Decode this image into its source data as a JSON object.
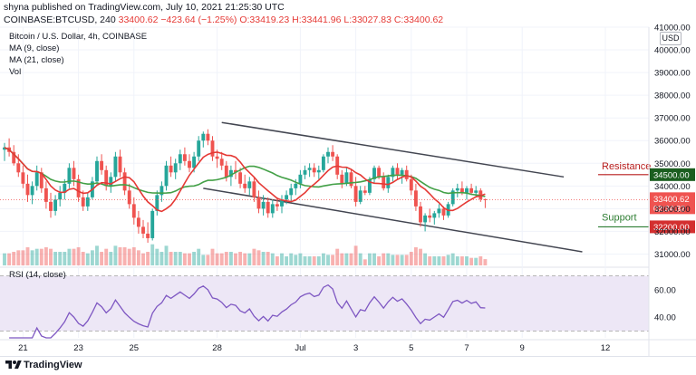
{
  "header": {
    "publisher_line": "shyna published on TradingView.com, July 10, 2021 21:25:30 UTC",
    "symbol": "COINBASE:BTCUSD, 240",
    "price": "33400.62",
    "change": "−423.64 (−1.25%)",
    "open": "O:33419.23",
    "high": "H:33441.96",
    "low": "L:33027.83",
    "close": "C:33400.62"
  },
  "legend": {
    "title": "Bitcoin / U.S. Dollar, 4h, COINBASE",
    "ma9": "MA (9, close)",
    "ma21": "MA (21, close)",
    "vol": "Vol"
  },
  "axis": {
    "currency": "USD"
  },
  "rsi_legend": "RSI (14, close)",
  "footer": {
    "brand": "TradingView"
  },
  "colors": {
    "up": "#26a69a",
    "down": "#ef5350",
    "ma9": "#e53935",
    "ma21": "#43a047",
    "channel": "#434651",
    "rsi": "#7e57c2",
    "rsi_band": "#ede7f6",
    "resistance": "#b71c1c",
    "support": "#2e7d32",
    "price_tag": "#ef5350"
  },
  "annotations": {
    "resistance_label": "Resistance",
    "resistance_price": "34500.00",
    "support_label": "Support",
    "support_price": "32200.00",
    "current_price": "33400.62",
    "countdown": "02:34:32"
  },
  "chart_data": [
    {
      "type": "candlestick",
      "title": "Bitcoin / U.S. Dollar, 4h, COINBASE",
      "ylim": [
        30500,
        41000
      ],
      "y_ticks": [
        31000,
        32000,
        33000,
        34000,
        35000,
        36000,
        37000,
        38000,
        39000,
        40000,
        41000
      ],
      "x_ticks": [
        {
          "label": "21",
          "bar": 4
        },
        {
          "label": "23",
          "bar": 16
        },
        {
          "label": "25",
          "bar": 28
        },
        {
          "label": "28",
          "bar": 46
        },
        {
          "label": "Jul",
          "bar": 64
        },
        {
          "label": "3",
          "bar": 76
        },
        {
          "label": "5",
          "bar": 88
        },
        {
          "label": "7",
          "bar": 100
        },
        {
          "label": "9",
          "bar": 112
        },
        {
          "label": "12",
          "bar": 130
        }
      ],
      "candles": [
        [
          35600,
          35900,
          35100,
          35700
        ],
        [
          35700,
          36100,
          35300,
          35500
        ],
        [
          35500,
          35800,
          34900,
          35000
        ],
        [
          35000,
          35400,
          34400,
          34600
        ],
        [
          34600,
          34900,
          33900,
          34100
        ],
        [
          34100,
          34500,
          33300,
          33600
        ],
        [
          33600,
          34200,
          33200,
          34000
        ],
        [
          34000,
          34900,
          33800,
          34600
        ],
        [
          34600,
          34800,
          33700,
          33900
        ],
        [
          33900,
          34200,
          33000,
          33300
        ],
        [
          33300,
          33700,
          32600,
          32900
        ],
        [
          32900,
          33600,
          32700,
          33400
        ],
        [
          33400,
          34000,
          33100,
          33700
        ],
        [
          33700,
          34300,
          33400,
          34100
        ],
        [
          34100,
          35000,
          33900,
          34800
        ],
        [
          34800,
          35100,
          34000,
          34300
        ],
        [
          34300,
          34500,
          33300,
          33500
        ],
        [
          33500,
          33800,
          32900,
          33100
        ],
        [
          33100,
          33700,
          32900,
          33500
        ],
        [
          33500,
          34400,
          33400,
          34200
        ],
        [
          34200,
          35300,
          34000,
          35100
        ],
        [
          35100,
          35400,
          34500,
          34700
        ],
        [
          34700,
          34900,
          33800,
          34000
        ],
        [
          34000,
          34600,
          33700,
          34400
        ],
        [
          34400,
          35500,
          34200,
          35300
        ],
        [
          35300,
          35600,
          34400,
          34600
        ],
        [
          34600,
          34800,
          33600,
          33800
        ],
        [
          33800,
          34100,
          33000,
          33200
        ],
        [
          33200,
          33500,
          32300,
          32600
        ],
        [
          32600,
          32900,
          31900,
          32200
        ],
        [
          32200,
          32500,
          31700,
          31900
        ],
        [
          31900,
          32400,
          31500,
          31700
        ],
        [
          31700,
          33000,
          31600,
          32900
        ],
        [
          32900,
          33800,
          32700,
          33600
        ],
        [
          33600,
          34200,
          33300,
          34000
        ],
        [
          34000,
          35100,
          33800,
          34900
        ],
        [
          34900,
          35300,
          34400,
          34600
        ],
        [
          34600,
          35200,
          34300,
          35000
        ],
        [
          35000,
          35600,
          34700,
          35400
        ],
        [
          35400,
          35700,
          34900,
          35100
        ],
        [
          35100,
          35400,
          34600,
          34800
        ],
        [
          34800,
          35500,
          34600,
          35300
        ],
        [
          35300,
          36200,
          35100,
          36000
        ],
        [
          36000,
          36400,
          35700,
          36300
        ],
        [
          36300,
          36500,
          35800,
          36000
        ],
        [
          36000,
          36200,
          35100,
          35300
        ],
        [
          35300,
          35600,
          34800,
          35200
        ],
        [
          35200,
          35500,
          34700,
          34900
        ],
        [
          34900,
          35100,
          34200,
          34400
        ],
        [
          34400,
          34900,
          34000,
          34700
        ],
        [
          34700,
          35100,
          34300,
          34600
        ],
        [
          34600,
          34800,
          33900,
          34100
        ],
        [
          34100,
          34500,
          33700,
          33900
        ],
        [
          33900,
          34400,
          33600,
          34200
        ],
        [
          34200,
          34400,
          33300,
          33500
        ],
        [
          33500,
          33800,
          32800,
          33000
        ],
        [
          33000,
          33600,
          32700,
          33300
        ],
        [
          33300,
          33500,
          32600,
          32800
        ],
        [
          32800,
          33400,
          32600,
          33200
        ],
        [
          33200,
          33500,
          32900,
          33100
        ],
        [
          33100,
          33600,
          32800,
          33400
        ],
        [
          33400,
          33800,
          33200,
          33600
        ],
        [
          33600,
          34100,
          33300,
          33900
        ],
        [
          33900,
          34300,
          33600,
          34100
        ],
        [
          34100,
          34700,
          33900,
          34500
        ],
        [
          34500,
          34900,
          34300,
          34700
        ],
        [
          34700,
          35000,
          34400,
          34800
        ],
        [
          34800,
          35000,
          34400,
          34600
        ],
        [
          34600,
          34900,
          34300,
          34700
        ],
        [
          34700,
          35400,
          34600,
          35300
        ],
        [
          35300,
          35700,
          35000,
          35500
        ],
        [
          35500,
          35800,
          35100,
          35300
        ],
        [
          35300,
          35400,
          34300,
          34500
        ],
        [
          34500,
          34700,
          33900,
          34100
        ],
        [
          34100,
          34800,
          34000,
          34600
        ],
        [
          34600,
          34700,
          33900,
          34000
        ],
        [
          34000,
          34400,
          33100,
          33300
        ],
        [
          33300,
          34000,
          33200,
          33800
        ],
        [
          33800,
          34000,
          33600,
          33700
        ],
        [
          33700,
          34400,
          33600,
          34300
        ],
        [
          34300,
          34900,
          34100,
          34800
        ],
        [
          34800,
          34900,
          34300,
          34400
        ],
        [
          34400,
          34600,
          33800,
          33900
        ],
        [
          33900,
          34500,
          33700,
          34400
        ],
        [
          34400,
          34900,
          34200,
          34800
        ],
        [
          34800,
          35000,
          34300,
          34500
        ],
        [
          34500,
          34800,
          34100,
          34700
        ],
        [
          34700,
          34900,
          34200,
          34300
        ],
        [
          34300,
          34500,
          33600,
          33800
        ],
        [
          33800,
          34100,
          32900,
          33100
        ],
        [
          33100,
          33300,
          32200,
          32400
        ],
        [
          32400,
          32800,
          32000,
          32700
        ],
        [
          32700,
          33000,
          32400,
          32600
        ],
        [
          32600,
          32900,
          32300,
          32800
        ],
        [
          32800,
          33200,
          32600,
          33000
        ],
        [
          33000,
          33100,
          32500,
          32700
        ],
        [
          32700,
          33300,
          32600,
          33200
        ],
        [
          33200,
          33900,
          33100,
          33800
        ],
        [
          33800,
          34100,
          33500,
          33900
        ],
        [
          33900,
          34200,
          33600,
          33700
        ],
        [
          33700,
          34000,
          33400,
          33900
        ],
        [
          33900,
          34100,
          33600,
          33700
        ],
        [
          33700,
          34000,
          33500,
          33800
        ],
        [
          33800,
          33900,
          33300,
          33419
        ],
        [
          33419,
          33442,
          33028,
          33401
        ]
      ],
      "channel": {
        "upper": {
          "from": {
            "bar": 47,
            "price": 36800
          },
          "to": {
            "bar": 121,
            "price": 34400
          }
        },
        "lower": {
          "from": {
            "bar": 43,
            "price": 33900
          },
          "to": {
            "bar": 125,
            "price": 31100
          }
        }
      },
      "levels": [
        {
          "name": "Resistance",
          "price": 34500
        },
        {
          "name": "Support",
          "price": 32200
        },
        {
          "name": "Last",
          "price": 33400.62
        }
      ]
    },
    {
      "type": "line",
      "name": "RSI (14, close)",
      "ylim": [
        25,
        75
      ],
      "y_ticks": [
        40,
        60
      ],
      "band": [
        30,
        70
      ]
    }
  ]
}
